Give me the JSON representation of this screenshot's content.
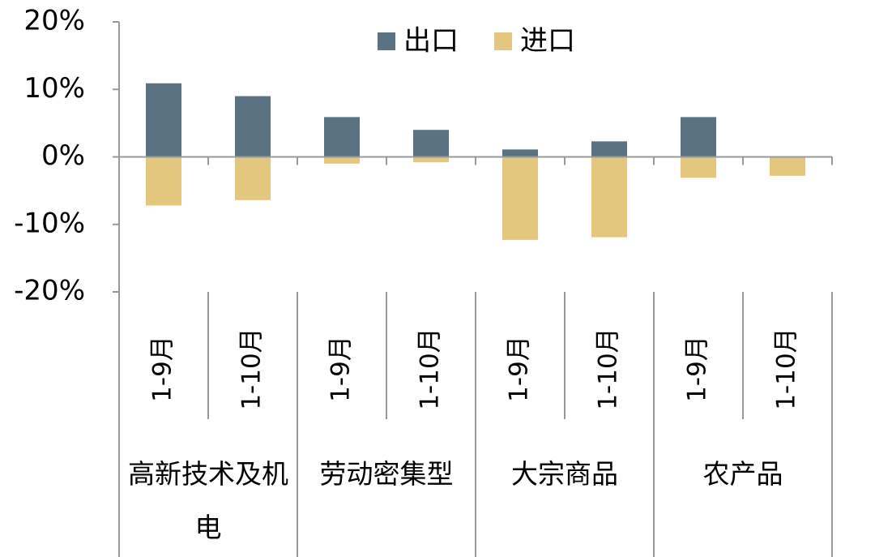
{
  "chart_data": {
    "type": "bar",
    "categories": [
      "1-9月",
      "1-10月",
      "1-9月",
      "1-10月",
      "1-9月",
      "1-10月",
      "1-9月",
      "1-10月"
    ],
    "group_categories": [
      "高新技术及机电",
      "劳动密集型",
      "大宗商品",
      "农产品"
    ],
    "series": [
      {
        "name": "出口",
        "color": "#5a7282",
        "values": [
          10.9,
          9.0,
          5.9,
          4.0,
          1.1,
          2.3,
          5.9,
          0
        ]
      },
      {
        "name": "进口",
        "color": "#e3c77e",
        "values": [
          -7.2,
          -6.4,
          -1.0,
          -0.8,
          -12.3,
          -11.9,
          -3.1,
          -2.8
        ]
      }
    ],
    "ylim": [
      -20,
      20
    ],
    "yticks": [
      {
        "value": -20,
        "label": "-20%"
      },
      {
        "value": -10,
        "label": "-10%"
      },
      {
        "value": 0,
        "label": "0%"
      },
      {
        "value": 10,
        "label": "10%"
      },
      {
        "value": 20,
        "label": "20%"
      }
    ],
    "legend": "top"
  }
}
